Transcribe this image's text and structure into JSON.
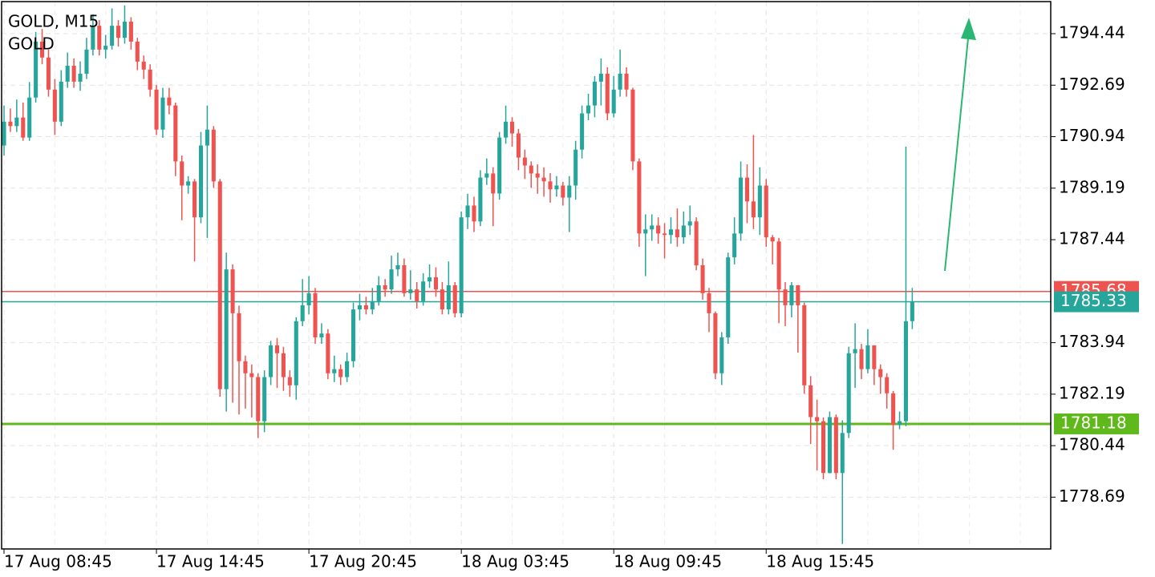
{
  "chart_data": {
    "type": "candlestick",
    "title": "GOLD, M15",
    "subtitle": "GOLD",
    "up_color": "#26a69a",
    "down_color": "#ef5350",
    "grid": true,
    "xlim": [
      -0.38,
      164.8
    ],
    "xticks": [
      {
        "value": 0,
        "label": "17 Aug 08:45"
      },
      {
        "value": 24,
        "label": "17 Aug 14:45"
      },
      {
        "value": 48,
        "label": "17 Aug 20:45"
      },
      {
        "value": 72,
        "label": "18 Aug 03:45"
      },
      {
        "value": 96,
        "label": "18 Aug 09:45"
      },
      {
        "value": 120,
        "label": "18 Aug 15:45"
      }
    ],
    "ylim": [
      1776.93,
      1795.53
    ],
    "yticks": [
      1794.44,
      1792.69,
      1790.94,
      1789.19,
      1787.44,
      1783.94,
      1782.19,
      1780.44,
      1778.69
    ],
    "price_lines": [
      {
        "value": 1785.68,
        "color": "#ef5350"
      },
      {
        "value": 1785.33,
        "color": "#26a69a"
      },
      {
        "value": 1781.18,
        "color": "#5fb91b"
      }
    ],
    "candles": [
      [
        1790.64,
        1792.0,
        1790.3,
        1791.45
      ],
      [
        1791.45,
        1791.9,
        1791.1,
        1791.3
      ],
      [
        1791.3,
        1792.2,
        1791.1,
        1791.59
      ],
      [
        1791.59,
        1792.1,
        1790.8,
        1790.91
      ],
      [
        1790.91,
        1792.8,
        1790.8,
        1792.27
      ],
      [
        1792.27,
        1794.5,
        1792.1,
        1794.17
      ],
      [
        1794.17,
        1794.6,
        1793.4,
        1793.63
      ],
      [
        1793.63,
        1793.9,
        1792.3,
        1792.54
      ],
      [
        1792.54,
        1792.9,
        1791.0,
        1791.45
      ],
      [
        1791.45,
        1793.2,
        1791.3,
        1792.81
      ],
      [
        1792.81,
        1793.8,
        1792.6,
        1793.35
      ],
      [
        1793.35,
        1793.6,
        1792.6,
        1792.81
      ],
      [
        1792.81,
        1793.5,
        1792.5,
        1793.08
      ],
      [
        1793.08,
        1794.3,
        1792.9,
        1793.9
      ],
      [
        1793.9,
        1795.1,
        1793.7,
        1794.71
      ],
      [
        1794.71,
        1794.9,
        1793.7,
        1793.9
      ],
      [
        1793.9,
        1794.4,
        1793.6,
        1794.03
      ],
      [
        1794.03,
        1795.3,
        1793.9,
        1794.71
      ],
      [
        1794.71,
        1794.9,
        1794.0,
        1794.3
      ],
      [
        1794.3,
        1795.4,
        1794.1,
        1794.85
      ],
      [
        1794.85,
        1795.0,
        1793.9,
        1794.17
      ],
      [
        1794.17,
        1794.3,
        1793.2,
        1793.49
      ],
      [
        1793.49,
        1793.7,
        1792.9,
        1793.22
      ],
      [
        1793.22,
        1793.4,
        1792.3,
        1792.54
      ],
      [
        1792.54,
        1792.7,
        1791.0,
        1791.18
      ],
      [
        1791.18,
        1792.6,
        1790.9,
        1792.27
      ],
      [
        1792.27,
        1792.6,
        1791.7,
        1792.0
      ],
      [
        1792.0,
        1792.1,
        1789.6,
        1790.1
      ],
      [
        1790.1,
        1790.3,
        1788.1,
        1789.28
      ],
      [
        1789.28,
        1789.6,
        1789.0,
        1789.42
      ],
      [
        1789.42,
        1789.5,
        1786.7,
        1788.2
      ],
      [
        1788.2,
        1791.1,
        1788.0,
        1790.64
      ],
      [
        1790.64,
        1792.0,
        1787.5,
        1791.18
      ],
      [
        1791.18,
        1791.3,
        1789.2,
        1789.42
      ],
      [
        1789.42,
        1789.5,
        1782.1,
        1782.36
      ],
      [
        1782.36,
        1787.0,
        1781.6,
        1786.43
      ],
      [
        1786.43,
        1786.6,
        1781.9,
        1784.94
      ],
      [
        1784.94,
        1785.2,
        1781.5,
        1783.31
      ],
      [
        1783.31,
        1783.5,
        1781.7,
        1782.9
      ],
      [
        1782.9,
        1783.2,
        1781.4,
        1782.77
      ],
      [
        1782.77,
        1782.9,
        1780.7,
        1781.27
      ],
      [
        1781.27,
        1783.0,
        1780.9,
        1782.77
      ],
      [
        1782.77,
        1784.0,
        1782.5,
        1783.85
      ],
      [
        1783.85,
        1784.1,
        1782.4,
        1783.58
      ],
      [
        1783.58,
        1783.8,
        1782.3,
        1782.77
      ],
      [
        1782.77,
        1783.0,
        1782.1,
        1782.49
      ],
      [
        1782.49,
        1784.8,
        1782.0,
        1784.67
      ],
      [
        1784.67,
        1786.1,
        1784.5,
        1785.21
      ],
      [
        1785.21,
        1786.2,
        1784.9,
        1785.62
      ],
      [
        1785.62,
        1785.8,
        1783.9,
        1784.12
      ],
      [
        1784.12,
        1784.6,
        1783.9,
        1784.25
      ],
      [
        1784.25,
        1784.4,
        1782.7,
        1782.9
      ],
      [
        1782.9,
        1783.5,
        1782.6,
        1783.04
      ],
      [
        1783.04,
        1783.2,
        1782.5,
        1782.77
      ],
      [
        1782.77,
        1783.6,
        1782.6,
        1783.31
      ],
      [
        1783.31,
        1785.3,
        1783.1,
        1785.07
      ],
      [
        1785.07,
        1785.6,
        1784.7,
        1785.21
      ],
      [
        1785.21,
        1785.5,
        1784.9,
        1785.07
      ],
      [
        1785.07,
        1785.8,
        1784.9,
        1785.35
      ],
      [
        1785.35,
        1786.2,
        1785.2,
        1785.89
      ],
      [
        1785.89,
        1786.1,
        1785.5,
        1785.75
      ],
      [
        1785.75,
        1786.9,
        1785.6,
        1786.43
      ],
      [
        1786.43,
        1787.0,
        1786.2,
        1786.57
      ],
      [
        1786.57,
        1786.8,
        1785.5,
        1785.62
      ],
      [
        1785.62,
        1786.4,
        1785.4,
        1785.75
      ],
      [
        1785.75,
        1786.0,
        1785.1,
        1785.35
      ],
      [
        1785.35,
        1786.3,
        1785.2,
        1786.02
      ],
      [
        1786.02,
        1786.6,
        1785.8,
        1786.16
      ],
      [
        1786.16,
        1786.5,
        1785.5,
        1785.75
      ],
      [
        1785.75,
        1786.0,
        1784.9,
        1785.07
      ],
      [
        1785.07,
        1786.7,
        1784.9,
        1785.89
      ],
      [
        1785.89,
        1786.0,
        1784.8,
        1784.94
      ],
      [
        1784.94,
        1788.4,
        1784.8,
        1788.2
      ],
      [
        1788.2,
        1789.0,
        1787.8,
        1788.6
      ],
      [
        1788.6,
        1788.9,
        1787.7,
        1788.06
      ],
      [
        1788.06,
        1789.8,
        1787.9,
        1789.55
      ],
      [
        1789.55,
        1790.2,
        1789.3,
        1789.69
      ],
      [
        1789.69,
        1789.9,
        1787.9,
        1789.01
      ],
      [
        1789.01,
        1791.1,
        1788.8,
        1790.91
      ],
      [
        1790.91,
        1792.0,
        1790.7,
        1791.45
      ],
      [
        1791.45,
        1791.6,
        1790.6,
        1791.05
      ],
      [
        1791.05,
        1791.2,
        1789.8,
        1790.23
      ],
      [
        1790.23,
        1790.5,
        1789.5,
        1789.96
      ],
      [
        1789.96,
        1790.1,
        1789.2,
        1789.69
      ],
      [
        1789.69,
        1790.0,
        1789.0,
        1789.55
      ],
      [
        1789.55,
        1789.9,
        1788.9,
        1789.42
      ],
      [
        1789.42,
        1789.7,
        1788.7,
        1789.15
      ],
      [
        1789.15,
        1789.6,
        1788.9,
        1789.28
      ],
      [
        1789.28,
        1789.4,
        1788.6,
        1788.87
      ],
      [
        1788.87,
        1789.6,
        1787.7,
        1789.28
      ],
      [
        1789.28,
        1790.8,
        1788.8,
        1790.5
      ],
      [
        1790.5,
        1792.0,
        1790.2,
        1791.73
      ],
      [
        1791.73,
        1792.4,
        1791.5,
        1792.0
      ],
      [
        1792.0,
        1793.0,
        1791.6,
        1792.81
      ],
      [
        1792.81,
        1793.6,
        1792.0,
        1793.08
      ],
      [
        1793.08,
        1793.3,
        1791.5,
        1791.73
      ],
      [
        1791.73,
        1793.0,
        1791.6,
        1792.54
      ],
      [
        1792.54,
        1793.9,
        1792.3,
        1793.08
      ],
      [
        1793.08,
        1793.3,
        1792.3,
        1792.54
      ],
      [
        1792.54,
        1792.6,
        1789.8,
        1790.1
      ],
      [
        1790.1,
        1790.2,
        1787.2,
        1787.65
      ],
      [
        1787.65,
        1788.3,
        1786.2,
        1787.79
      ],
      [
        1787.79,
        1788.3,
        1787.4,
        1787.92
      ],
      [
        1787.92,
        1788.2,
        1787.3,
        1787.65
      ],
      [
        1787.65,
        1788.0,
        1786.8,
        1787.6
      ],
      [
        1787.6,
        1788.2,
        1787.3,
        1787.79
      ],
      [
        1787.79,
        1788.5,
        1787.2,
        1787.52
      ],
      [
        1787.52,
        1788.4,
        1787.3,
        1787.92
      ],
      [
        1787.92,
        1788.6,
        1787.6,
        1788.06
      ],
      [
        1788.06,
        1788.2,
        1786.4,
        1786.57
      ],
      [
        1786.57,
        1786.8,
        1785.4,
        1785.62
      ],
      [
        1785.62,
        1785.8,
        1784.3,
        1784.94
      ],
      [
        1784.94,
        1785.0,
        1782.7,
        1782.9
      ],
      [
        1782.9,
        1784.3,
        1782.5,
        1784.12
      ],
      [
        1784.12,
        1787.0,
        1783.9,
        1786.84
      ],
      [
        1786.84,
        1788.2,
        1786.6,
        1787.65
      ],
      [
        1787.65,
        1790.1,
        1787.4,
        1789.55
      ],
      [
        1789.55,
        1790.0,
        1788.0,
        1788.74
      ],
      [
        1788.74,
        1791.0,
        1787.8,
        1788.2
      ],
      [
        1788.2,
        1789.9,
        1787.6,
        1789.28
      ],
      [
        1789.28,
        1789.5,
        1787.2,
        1787.52
      ],
      [
        1787.52,
        1787.6,
        1786.6,
        1787.38
      ],
      [
        1787.38,
        1787.5,
        1784.6,
        1785.75
      ],
      [
        1785.75,
        1786.0,
        1784.5,
        1785.21
      ],
      [
        1785.21,
        1786.0,
        1784.8,
        1785.89
      ],
      [
        1785.89,
        1785.9,
        1783.6,
        1785.21
      ],
      [
        1785.21,
        1785.3,
        1782.2,
        1782.49
      ],
      [
        1782.49,
        1782.8,
        1780.5,
        1781.41
      ],
      [
        1781.41,
        1782.0,
        1779.6,
        1781.27
      ],
      [
        1781.27,
        1781.4,
        1779.3,
        1779.51
      ],
      [
        1779.51,
        1781.6,
        1779.5,
        1781.41
      ],
      [
        1781.41,
        1781.5,
        1779.3,
        1779.51
      ],
      [
        1779.51,
        1781.3,
        1777.1,
        1780.87
      ],
      [
        1780.87,
        1783.8,
        1780.7,
        1783.58
      ],
      [
        1783.58,
        1784.6,
        1782.4,
        1783.72
      ],
      [
        1783.72,
        1783.9,
        1782.7,
        1783.04
      ],
      [
        1783.04,
        1784.4,
        1782.9,
        1783.85
      ],
      [
        1783.85,
        1783.8,
        1782.5,
        1783.04
      ],
      [
        1783.04,
        1783.2,
        1782.2,
        1782.77
      ],
      [
        1782.77,
        1782.9,
        1781.7,
        1782.22
      ],
      [
        1782.22,
        1782.3,
        1780.3,
        1781.14
      ],
      [
        1781.14,
        1781.6,
        1781.0,
        1781.27
      ],
      [
        1781.27,
        1790.6,
        1781.1,
        1784.67
      ],
      [
        1784.67,
        1785.8,
        1784.4,
        1785.33
      ]
    ]
  }
}
